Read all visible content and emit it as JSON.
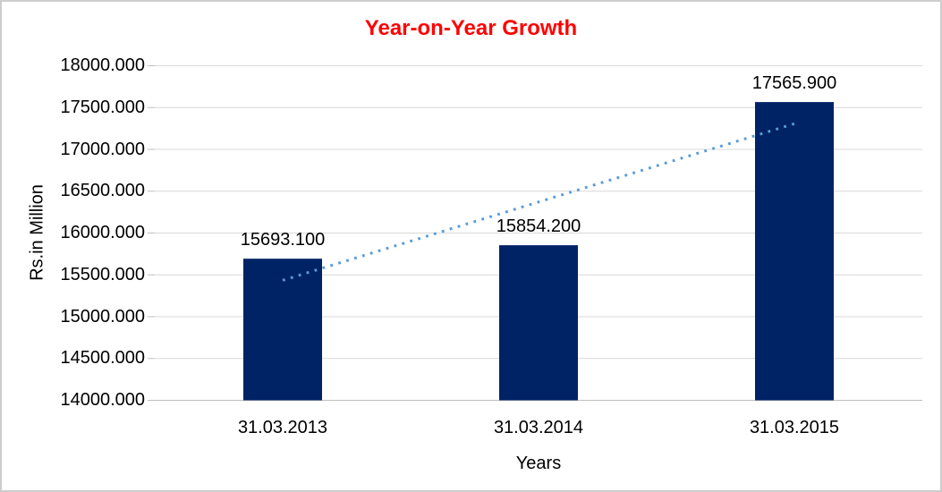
{
  "chart_data": {
    "type": "bar",
    "title": "Year-on-Year Growth",
    "title_color": "#ff0000",
    "xlabel": "Years",
    "ylabel": "Rs.in Million",
    "categories": [
      "31.03.2013",
      "31.03.2014",
      "31.03.2015"
    ],
    "values": [
      15693.1,
      15854.2,
      17565.9
    ],
    "data_labels": [
      "15693.100",
      "15854.200",
      "17565.900"
    ],
    "ylim": [
      14000,
      18000
    ],
    "ytick_step": 500,
    "ytick_labels": [
      "14000.000",
      "14500.000",
      "15000.000",
      "15500.000",
      "16000.000",
      "16500.000",
      "17000.000",
      "17500.000",
      "18000.000"
    ],
    "grid": true,
    "legend": "none",
    "bar_color": "#002366",
    "gridline_color": "#d9d9d9",
    "axis_line_color": "#bfbfbf",
    "trendline": {
      "style": "dotted",
      "color": "#5b9bd5",
      "start_value": 15434.7,
      "end_value": 17307.5
    }
  }
}
